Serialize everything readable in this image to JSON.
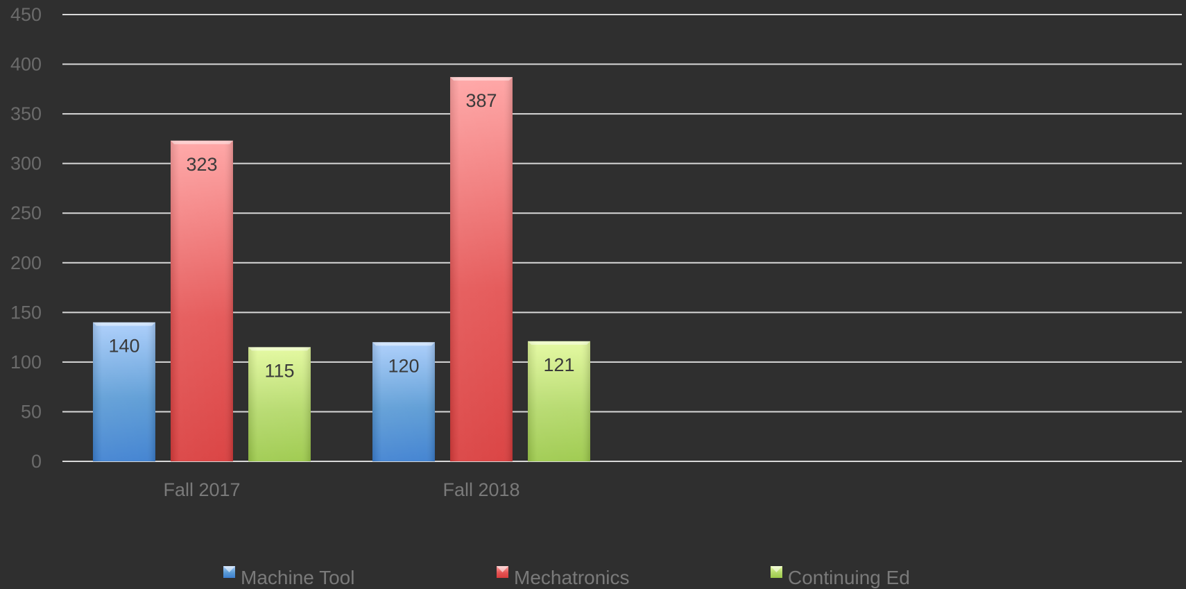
{
  "chart_data": {
    "type": "bar",
    "title": "",
    "xlabel": "",
    "ylabel": "",
    "categories": [
      "Fall 2017",
      "Fall 2018"
    ],
    "series": [
      {
        "name": "Machine Tool",
        "values": [
          140,
          120
        ],
        "color": "#5b9bd5",
        "color_light": "#a9cdfb",
        "color_dark": "#3c7fd0"
      },
      {
        "name": "Mechatronics",
        "values": [
          323,
          387
        ],
        "color": "#e45454",
        "color_light": "#ffa3a3",
        "color_dark": "#d93c3c"
      },
      {
        "name": "Continuing Ed",
        "values": [
          115,
          121
        ],
        "color": "#b4d96a",
        "color_light": "#e3f99d",
        "color_dark": "#9cc94a"
      }
    ],
    "ylim": [
      0,
      450
    ],
    "yticks": [
      0,
      50,
      100,
      150,
      200,
      250,
      300,
      350,
      400,
      450
    ],
    "grid": true,
    "legend_position": "bottom",
    "background": "#2f2f2f"
  }
}
